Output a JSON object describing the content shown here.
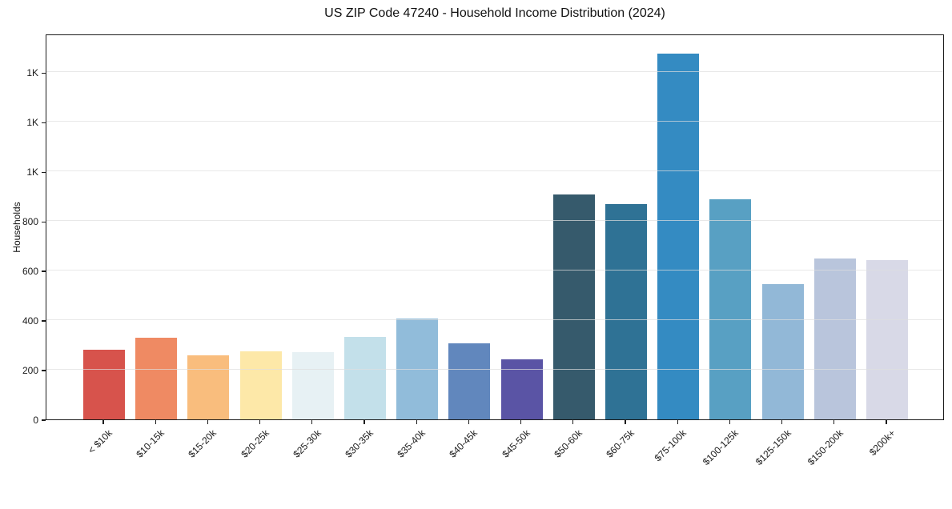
{
  "chart_data": {
    "type": "bar",
    "title": "US ZIP Code 47240 - Household Income Distribution (2024)",
    "xlabel": "",
    "ylabel": "Households",
    "categories": [
      "< $10k",
      "$10-15k",
      "$15-20k",
      "$20-25k",
      "$25-30k",
      "$30-35k",
      "$35-40k",
      "$40-45k",
      "$45-50k",
      "$50-60k",
      "$60-75k",
      "$75-100k",
      "$100-125k",
      "$125-150k",
      "$150-200k",
      "$200k+"
    ],
    "values": [
      280,
      330,
      260,
      275,
      272,
      333,
      408,
      308,
      243,
      908,
      868,
      1475,
      887,
      546,
      650,
      643
    ],
    "bar_colors": [
      "#d7534c",
      "#ef8a63",
      "#f9bd7d",
      "#fde8a8",
      "#e7f1f4",
      "#c3e0ea",
      "#91bcda",
      "#6187bd",
      "#5a54a5",
      "#365a6c",
      "#2f7295",
      "#348bc2",
      "#58a0c3",
      "#92b8d7",
      "#b9c5dc",
      "#d8d9e7"
    ],
    "ylim": [
      0,
      1556
    ],
    "yticks": [
      {
        "value": 0,
        "label": "0"
      },
      {
        "value": 200,
        "label": "200"
      },
      {
        "value": 400,
        "label": "400"
      },
      {
        "value": 600,
        "label": "600"
      },
      {
        "value": 800,
        "label": "800"
      },
      {
        "value": 1000,
        "label": "1K"
      },
      {
        "value": 1200,
        "label": "1K"
      },
      {
        "value": 1400,
        "label": "1K"
      }
    ],
    "grid": "horizontal",
    "legend_position": "none",
    "colors": {
      "background": "#ffffff",
      "spine": "#1b1b1b",
      "gridline": "#e8e8e8",
      "text": "#111111"
    }
  }
}
